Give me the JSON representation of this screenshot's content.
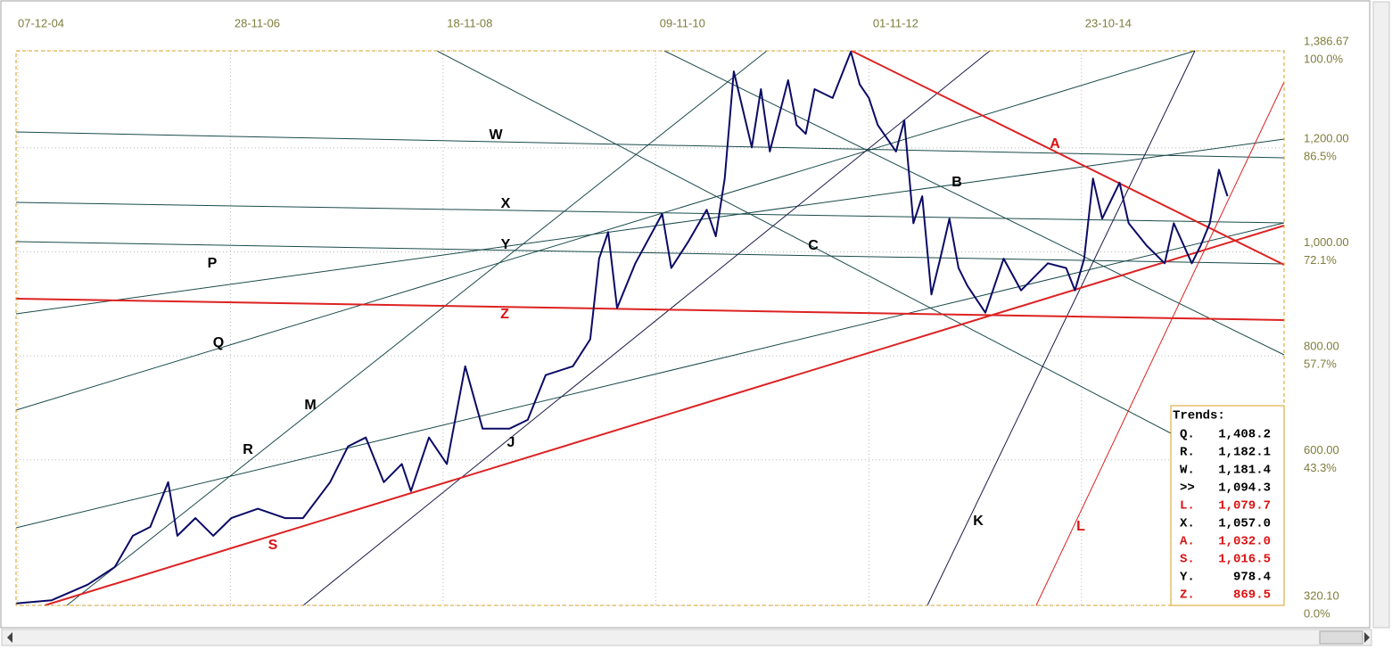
{
  "chart_data": {
    "type": "line",
    "xlim": [
      "2004-12-01",
      "2016-09-09"
    ],
    "xticks": [
      {
        "value": "2004-12-07",
        "label": "07-12-04"
      },
      {
        "value": "2006-11-28",
        "label": "28-11-06"
      },
      {
        "value": "2008-11-18",
        "label": "18-11-08"
      },
      {
        "value": "2010-11-09",
        "label": "09-11-10"
      },
      {
        "value": "2012-11-01",
        "label": "01-11-12"
      },
      {
        "value": "2014-10-23",
        "label": "23-10-14"
      }
    ],
    "ylim": [
      320.1,
      1386.67
    ],
    "yticks": [
      {
        "value": 1386.67,
        "label": "1,386.67"
      },
      {
        "value": 1200,
        "label": "1,200.00"
      },
      {
        "value": 1000,
        "label": "1,000.00"
      },
      {
        "value": 800,
        "label": "800.00"
      },
      {
        "value": 600,
        "label": "600.00"
      },
      {
        "value": 320.1,
        "label": "320.10"
      }
    ],
    "y_percent_labels": [
      "100.0%",
      "86.5%",
      "72.1%",
      "57.7%",
      "43.3%",
      "0.0%"
    ],
    "grid": true,
    "series": [
      {
        "color": "#0b0b66",
        "x": [
          "2004-12",
          "2005-04",
          "2005-08",
          "2005-11",
          "2006-01",
          "2006-03",
          "2006-05",
          "2006-06",
          "2006-08",
          "2006-10",
          "2006-12",
          "2007-03",
          "2007-06",
          "2007-08",
          "2007-11",
          "2008-01",
          "2008-03",
          "2008-05",
          "2008-07",
          "2008-08",
          "2008-10",
          "2008-12",
          "2009-02",
          "2009-04",
          "2009-07",
          "2009-09",
          "2009-11",
          "2010-02",
          "2010-04",
          "2010-05",
          "2010-06",
          "2010-07",
          "2010-09",
          "2010-12",
          "2011-01",
          "2011-03",
          "2011-05",
          "2011-06",
          "2011-07",
          "2011-08",
          "2011-10",
          "2011-11",
          "2011-12",
          "2012-02",
          "2012-03",
          "2012-04",
          "2012-05",
          "2012-07",
          "2012-09",
          "2012-10",
          "2012-11",
          "2012-12",
          "2013-02",
          "2013-03",
          "2013-04",
          "2013-05",
          "2013-06",
          "2013-07",
          "2013-08",
          "2013-09",
          "2013-10",
          "2013-12",
          "2014-02",
          "2014-04",
          "2014-07",
          "2014-09",
          "2014-10",
          "2014-11",
          "2014-12",
          "2015-01",
          "2015-03",
          "2015-04",
          "2015-06",
          "2015-08",
          "2015-09",
          "2015-11",
          "2015-12",
          "2016-01",
          "2016-02",
          "2016-03"
        ],
        "values": [
          324,
          330,
          360,
          394,
          454,
          471,
          557,
          454,
          488,
          454,
          488,
          506,
          488,
          488,
          557,
          626,
          643,
          557,
          592,
          540,
          643,
          592,
          780,
          660,
          660,
          677,
          763,
          780,
          832,
          987,
          1038,
          892,
          978,
          1073,
          969,
          1021,
          1081,
          1030,
          1141,
          1347,
          1201,
          1313,
          1193,
          1330,
          1244,
          1227,
          1313,
          1296,
          1385,
          1322,
          1296,
          1244,
          1193,
          1253,
          1055,
          1107,
          918,
          987,
          1064,
          969,
          935,
          883,
          987,
          926,
          978,
          969,
          926,
          987,
          1141,
          1064,
          1133,
          1055,
          1012,
          978,
          1055,
          978,
          1012,
          1055,
          1158,
          1107
        ]
      }
    ],
    "annotations": [
      {
        "text": "W",
        "color": "#000000"
      },
      {
        "text": "X",
        "color": "#000000"
      },
      {
        "text": "Y",
        "color": "#000000"
      },
      {
        "text": "P",
        "color": "#000000"
      },
      {
        "text": "Q",
        "color": "#000000"
      },
      {
        "text": "M",
        "color": "#000000"
      },
      {
        "text": "R",
        "color": "#000000"
      },
      {
        "text": "S",
        "color": "#dd1111"
      },
      {
        "text": "J",
        "color": "#000000"
      },
      {
        "text": "Z",
        "color": "#dd1111"
      },
      {
        "text": "A",
        "color": "#dd1111"
      },
      {
        "text": "B",
        "color": "#000000"
      },
      {
        "text": "C",
        "color": "#000000"
      },
      {
        "text": "K",
        "color": "#000000"
      },
      {
        "text": "L",
        "color": "#dd1111"
      }
    ],
    "trends_title": "Trends:",
    "trends": [
      {
        "name": "Q.",
        "value": "1,408.2",
        "color": "#000000"
      },
      {
        "name": "R.",
        "value": "1,182.1",
        "color": "#000000"
      },
      {
        "name": "W.",
        "value": "1,181.4",
        "color": "#000000"
      },
      {
        "name": ">>",
        "value": "1,094.3",
        "color": "#000000"
      },
      {
        "name": "L.",
        "value": "1,079.7",
        "color": "#dd1111"
      },
      {
        "name": "X.",
        "value": "1,057.0",
        "color": "#000000"
      },
      {
        "name": "A.",
        "value": "1,032.0",
        "color": "#dd1111"
      },
      {
        "name": "S.",
        "value": "1,016.5",
        "color": "#dd1111"
      },
      {
        "name": "Y.",
        "value": "978.4",
        "color": "#000000"
      },
      {
        "name": "Z.",
        "value": "869.5",
        "color": "#dd1111"
      }
    ]
  }
}
